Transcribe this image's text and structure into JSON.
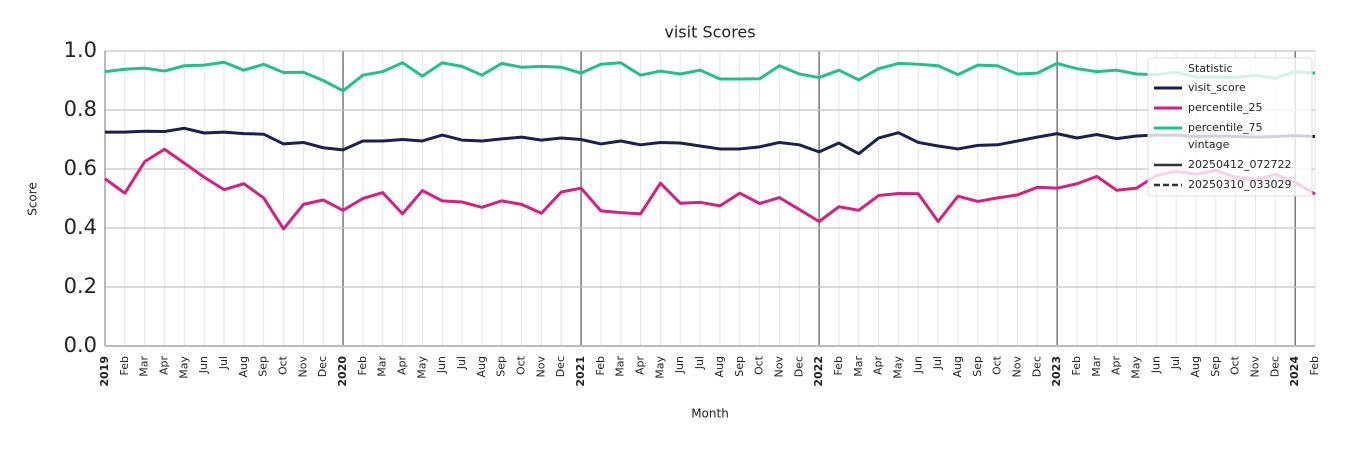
{
  "chart_data": {
    "type": "line",
    "title": "visit Scores",
    "x_label": "Month",
    "y_label": "Score",
    "categories": [
      "2019",
      "Feb",
      "Mar",
      "Apr",
      "May",
      "Jun",
      "Jul",
      "Aug",
      "Sep",
      "Oct",
      "Nov",
      "Dec",
      "2020",
      "Feb",
      "Mar",
      "Apr",
      "May",
      "Jun",
      "Jul",
      "Aug",
      "Sep",
      "Oct",
      "Nov",
      "Dec",
      "2021",
      "Feb",
      "Mar",
      "Apr",
      "May",
      "Jun",
      "Jul",
      "Aug",
      "Sep",
      "Oct",
      "Nov",
      "Dec",
      "2022",
      "Feb",
      "Mar",
      "Apr",
      "May",
      "Jun",
      "Jul",
      "Aug",
      "Sep",
      "Oct",
      "Nov",
      "Dec",
      "2023",
      "Feb",
      "Mar",
      "Apr",
      "May",
      "Jun",
      "Jul",
      "Aug",
      "Sep",
      "Oct",
      "Nov",
      "Dec",
      "2024",
      "Feb"
    ],
    "series": [
      {
        "name": "visit_score",
        "color": "#1c1f4f",
        "values": [
          0.725,
          0.725,
          0.728,
          0.727,
          0.738,
          0.722,
          0.725,
          0.72,
          0.718,
          0.685,
          0.69,
          0.672,
          0.665,
          0.695,
          0.695,
          0.7,
          0.695,
          0.715,
          0.698,
          0.695,
          0.702,
          0.708,
          0.698,
          0.705,
          0.7,
          0.685,
          0.695,
          0.682,
          0.69,
          0.688,
          0.678,
          0.668,
          0.668,
          0.675,
          0.69,
          0.682,
          0.658,
          0.688,
          0.652,
          0.705,
          0.723,
          0.69,
          0.678,
          0.668,
          0.68,
          0.682,
          0.695,
          0.708,
          0.72,
          0.705,
          0.717,
          0.703,
          0.712,
          0.715,
          0.715,
          0.71,
          0.712,
          0.71,
          0.708,
          0.71,
          0.713,
          0.71
        ]
      },
      {
        "name": "percentile_25",
        "color": "#d4207f",
        "values": [
          0.567,
          0.518,
          0.625,
          0.667,
          0.62,
          0.572,
          0.53,
          0.55,
          0.502,
          0.397,
          0.48,
          0.495,
          0.46,
          0.5,
          0.52,
          0.448,
          0.527,
          0.492,
          0.488,
          0.47,
          0.492,
          0.48,
          0.45,
          0.522,
          0.535,
          0.458,
          0.452,
          0.448,
          0.552,
          0.484,
          0.487,
          0.475,
          0.518,
          0.483,
          0.503,
          0.463,
          0.422,
          0.472,
          0.46,
          0.51,
          0.517,
          0.516,
          0.422,
          0.508,
          0.49,
          0.502,
          0.512,
          0.538,
          0.535,
          0.55,
          0.575,
          0.528,
          0.535,
          0.578,
          0.592,
          0.582,
          0.595,
          0.572,
          0.562,
          0.582,
          0.555,
          0.515
        ]
      },
      {
        "name": "percentile_75",
        "color": "#22c08a",
        "values": [
          0.93,
          0.938,
          0.942,
          0.932,
          0.95,
          0.952,
          0.962,
          0.935,
          0.955,
          0.927,
          0.928,
          0.9,
          0.865,
          0.918,
          0.93,
          0.96,
          0.915,
          0.96,
          0.948,
          0.918,
          0.958,
          0.945,
          0.948,
          0.945,
          0.925,
          0.955,
          0.96,
          0.918,
          0.932,
          0.922,
          0.935,
          0.905,
          0.905,
          0.906,
          0.95,
          0.922,
          0.91,
          0.935,
          0.902,
          0.94,
          0.958,
          0.955,
          0.95,
          0.92,
          0.952,
          0.95,
          0.922,
          0.925,
          0.958,
          0.94,
          0.93,
          0.935,
          0.922,
          0.92,
          0.928,
          0.912,
          0.912,
          0.91,
          0.918,
          0.908,
          0.93,
          0.925
        ]
      }
    ],
    "ylim": [
      0,
      1
    ],
    "yticks": [
      {
        "value": 0,
        "label": "0.0"
      },
      {
        "value": 0.2,
        "label": "0.2"
      },
      {
        "value": 0.4,
        "label": "0.4"
      },
      {
        "value": 0.6,
        "label": "0.6"
      },
      {
        "value": 0.8,
        "label": "0.8"
      },
      {
        "value": 1,
        "label": "1.0"
      }
    ],
    "grid": true,
    "legend": {
      "title": "Statistic",
      "position": "upper right",
      "style_title": "vintage",
      "styles": [
        "20250412_072722",
        "20250310_033029"
      ]
    }
  }
}
